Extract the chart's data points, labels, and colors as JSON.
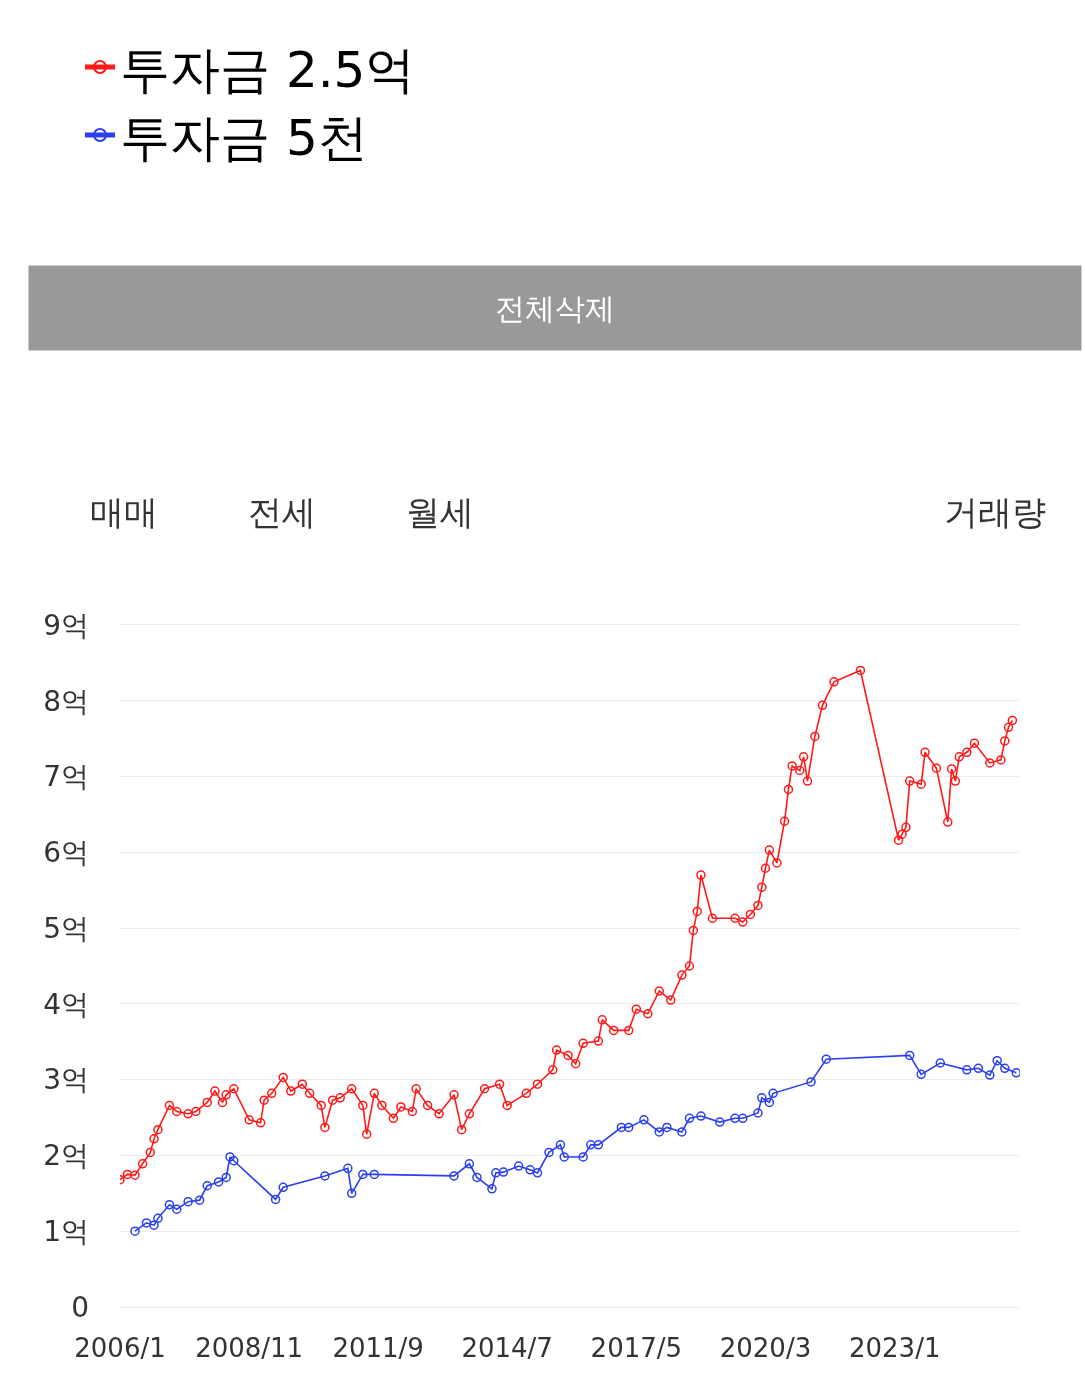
{
  "chart_data": {
    "type": "line",
    "x": [
      "2006-01",
      "2006-03",
      "2006-05",
      "2006-07",
      "2006-09",
      "2006-10",
      "2006-11",
      "2007-02",
      "2007-04",
      "2007-07",
      "2007-09",
      "2007-12",
      "2008-02",
      "2008-04",
      "2008-05",
      "2008-07",
      "2008-11",
      "2009-02",
      "2009-03",
      "2009-05",
      "2009-08",
      "2009-10",
      "2010-01",
      "2010-03",
      "2010-06",
      "2010-07",
      "2010-09",
      "2010-11",
      "2011-02",
      "2011-05",
      "2011-06",
      "2011-08",
      "2011-10",
      "2012-01",
      "2012-03",
      "2012-06",
      "2012-07",
      "2012-10",
      "2013-01",
      "2013-05",
      "2013-07",
      "2013-09",
      "2014-01",
      "2014-05",
      "2014-07",
      "2014-12",
      "2015-03",
      "2015-07",
      "2015-08",
      "2015-11",
      "2016-01",
      "2016-03",
      "2016-07",
      "2016-08",
      "2016-11",
      "2017-03",
      "2017-05",
      "2017-08",
      "2017-11",
      "2018-02",
      "2018-05",
      "2018-07",
      "2018-08",
      "2018-09",
      "2018-10",
      "2019-01",
      "2019-07",
      "2019-09",
      "2019-11",
      "2020-01",
      "2020-02",
      "2020-03",
      "2020-04",
      "2020-06",
      "2020-08",
      "2020-09",
      "2020-10",
      "2020-12",
      "2021-01",
      "2021-02",
      "2021-04",
      "2021-06",
      "2021-09",
      "2022-04",
      "2023-02",
      "2023-03",
      "2023-04",
      "2023-05",
      "2023-08",
      "2023-09",
      "2023-12",
      "2024-03",
      "2024-04",
      "2024-05",
      "2024-06",
      "2024-08",
      "2024-10",
      "2025-02",
      "2025-05",
      "2025-06",
      "2025-07",
      "2025-08"
    ],
    "series": [
      {
        "name": "투자금 2.5억",
        "color": "#ff1a1a",
        "values": [
          1.68,
          1.75,
          1.74,
          1.89,
          2.04,
          2.22,
          2.34,
          2.66,
          2.58,
          2.55,
          2.58,
          2.7,
          2.85,
          2.7,
          2.8,
          2.88,
          2.47,
          2.43,
          2.73,
          2.82,
          3.03,
          2.85,
          2.94,
          2.82,
          2.66,
          2.37,
          2.73,
          2.76,
          2.88,
          2.66,
          2.28,
          2.82,
          2.66,
          2.49,
          2.64,
          2.58,
          2.88,
          2.66,
          2.55,
          2.8,
          2.34,
          2.55,
          2.88,
          2.94,
          2.66,
          2.82,
          2.94,
          3.13,
          3.39,
          3.32,
          3.21,
          3.48,
          3.51,
          3.79,
          3.65,
          3.65,
          3.93,
          3.87,
          4.17,
          4.05,
          4.38,
          4.5,
          4.97,
          5.22,
          5.7,
          5.13,
          5.13,
          5.08,
          5.18,
          5.3,
          5.54,
          5.79,
          6.03,
          5.86,
          6.41,
          6.83,
          7.14,
          7.08,
          7.26,
          6.94,
          7.53,
          7.94,
          8.25,
          8.4,
          6.16,
          6.24,
          6.33,
          6.94,
          6.9,
          7.32,
          7.11,
          6.4,
          7.1,
          6.94,
          7.26,
          7.32,
          7.44,
          7.18,
          7.22,
          7.47,
          7.65,
          7.74
        ]
      },
      {
        "name": "투자금 5천",
        "color": "#2b3ff0",
        "x": [
          "2006-05",
          "2006-08",
          "2006-10",
          "2006-11",
          "2007-02",
          "2007-04",
          "2007-07",
          "2007-10",
          "2007-12",
          "2008-03",
          "2008-05",
          "2008-06",
          "2008-07",
          "2009-06",
          "2009-08",
          "2010-07",
          "2011-01",
          "2011-02",
          "2011-05",
          "2011-08",
          "2013-05",
          "2013-09",
          "2013-11",
          "2014-03",
          "2014-04",
          "2014-06",
          "2014-10",
          "2015-01",
          "2015-03",
          "2015-06",
          "2015-09",
          "2015-10",
          "2016-03",
          "2016-05",
          "2016-07",
          "2017-01",
          "2017-03",
          "2017-07",
          "2017-11",
          "2018-01",
          "2018-05",
          "2018-07",
          "2018-10",
          "2019-03",
          "2019-07",
          "2019-09",
          "2020-01",
          "2020-02",
          "2020-04",
          "2020-05",
          "2021-03",
          "2021-07",
          "2023-05",
          "2023-08",
          "2024-01",
          "2024-08",
          "2024-11",
          "2025-02",
          "2025-04",
          "2025-06",
          "2025-09"
        ],
        "values": [
          1.0,
          1.11,
          1.08,
          1.17,
          1.35,
          1.29,
          1.39,
          1.41,
          1.6,
          1.65,
          1.71,
          1.98,
          1.93,
          1.42,
          1.58,
          1.73,
          1.83,
          1.5,
          1.75,
          1.75,
          1.73,
          1.89,
          1.71,
          1.56,
          1.77,
          1.78,
          1.86,
          1.81,
          1.77,
          2.04,
          2.14,
          1.98,
          1.98,
          2.14,
          2.14,
          2.37,
          2.37,
          2.47,
          2.31,
          2.37,
          2.31,
          2.49,
          2.52,
          2.44,
          2.49,
          2.49,
          2.56,
          2.76,
          2.7,
          2.82,
          2.97,
          3.27,
          3.32,
          3.07,
          3.22,
          3.13,
          3.15,
          3.06,
          3.25,
          3.15,
          3.09
        ]
      }
    ],
    "xlim": [
      "2006-01",
      "2025-10"
    ],
    "xticks": [
      {
        "value": "2006-01",
        "label": "2006/1"
      },
      {
        "value": "2008-11",
        "label": "2008/11"
      },
      {
        "value": "2011-09",
        "label": "2011/9"
      },
      {
        "value": "2014-07",
        "label": "2014/7"
      },
      {
        "value": "2017-05",
        "label": "2017/5"
      },
      {
        "value": "2020-03",
        "label": "2020/3"
      },
      {
        "value": "2023-01",
        "label": "2023/1"
      }
    ],
    "ylim": [
      0,
      9
    ],
    "yticks": [
      0,
      {
        "value": 1,
        "label": "1억"
      },
      {
        "value": 2,
        "label": "2억"
      },
      {
        "value": 3,
        "label": "3억"
      },
      {
        "value": 4,
        "label": "4억"
      },
      {
        "value": 5,
        "label": "5억"
      },
      {
        "value": 6,
        "label": "6억"
      },
      {
        "value": 7,
        "label": "7억"
      },
      {
        "value": 8,
        "label": "8억"
      },
      {
        "value": 9,
        "label": "9억"
      }
    ],
    "grid": "y",
    "legend": "top left",
    "marker": "circle",
    "line_style": "solid",
    "annotations": [
      "전체삭제",
      "매매",
      "전세",
      "월세",
      "거래량"
    ]
  }
}
